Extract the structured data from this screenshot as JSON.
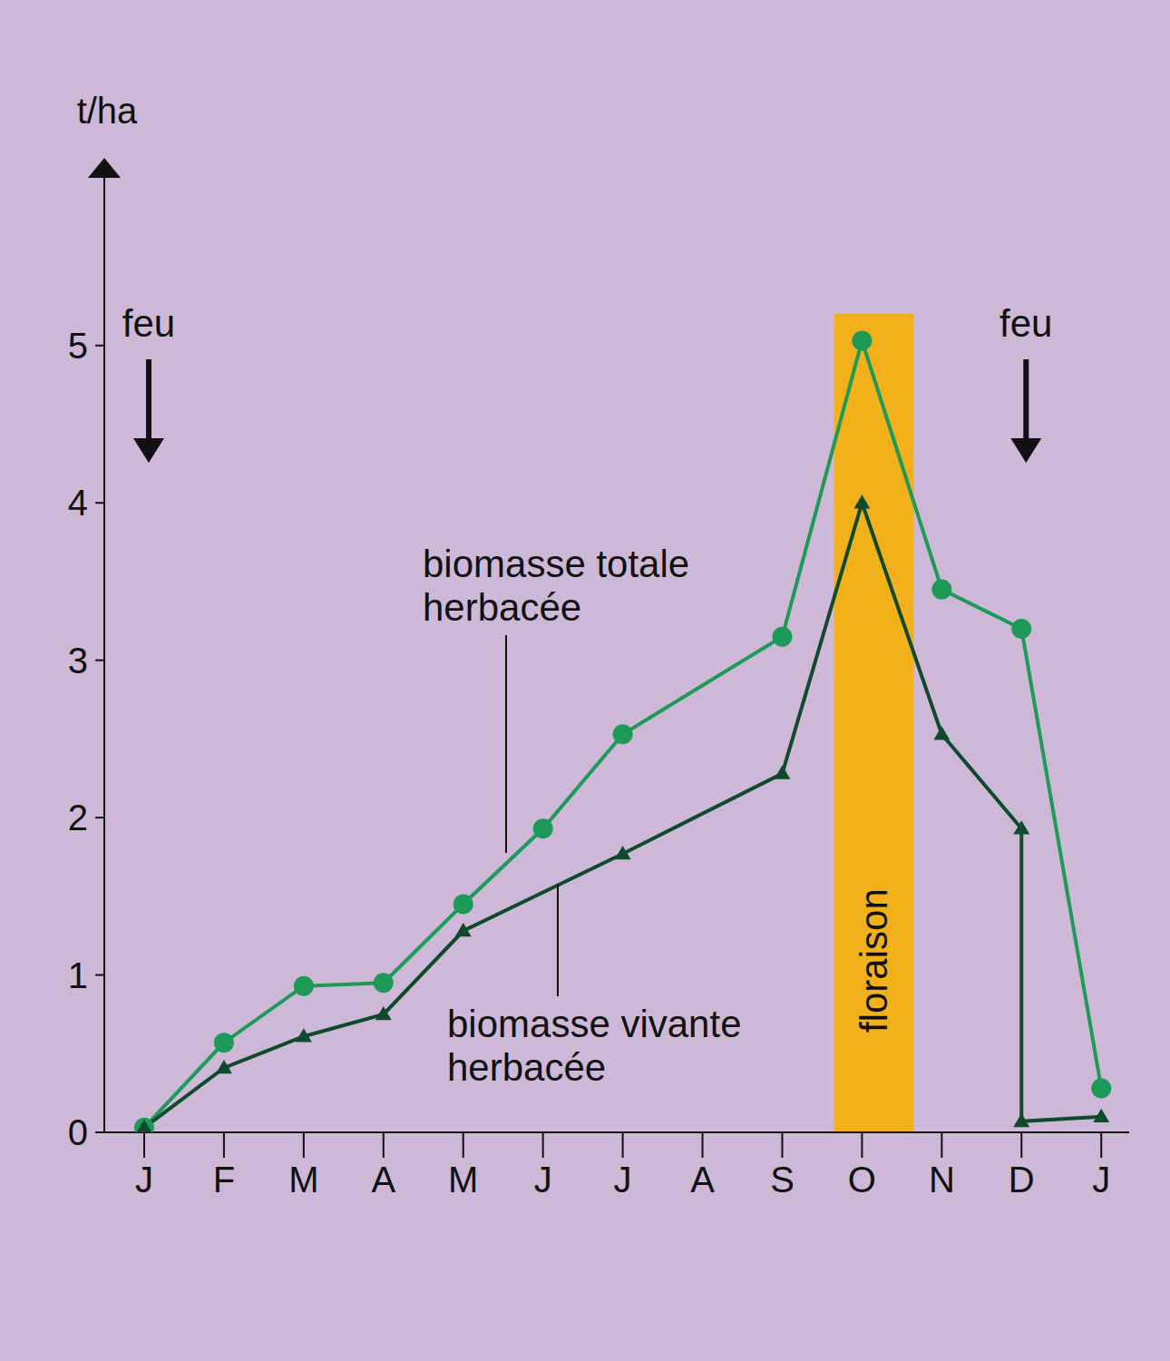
{
  "chart_data": {
    "type": "line",
    "y_label": "t/ha",
    "xlim": [
      -0.5,
      12.35
    ],
    "xticks": [
      {
        "value": 0,
        "label": "J"
      },
      {
        "value": 1,
        "label": "F"
      },
      {
        "value": 2,
        "label": "M"
      },
      {
        "value": 3,
        "label": "A"
      },
      {
        "value": 4,
        "label": "M"
      },
      {
        "value": 5,
        "label": "J"
      },
      {
        "value": 6,
        "label": "J"
      },
      {
        "value": 7,
        "label": "A"
      },
      {
        "value": 8,
        "label": "S"
      },
      {
        "value": 9,
        "label": "O"
      },
      {
        "value": 10,
        "label": "N"
      },
      {
        "value": 11,
        "label": "D"
      },
      {
        "value": 12,
        "label": "J"
      }
    ],
    "ylim": [
      0,
      6.1
    ],
    "yticks": [
      0,
      1,
      2,
      3,
      4,
      5
    ],
    "grid": false,
    "series": [
      {
        "name": "biomasse totale herbacée",
        "color": "#1e9a58",
        "marker": "circle",
        "x": [
          0,
          1,
          2,
          3,
          4,
          5,
          6,
          8,
          9,
          10,
          11,
          12
        ],
        "values": [
          0.03,
          0.57,
          0.93,
          0.95,
          1.45,
          1.93,
          2.53,
          3.15,
          5.03,
          3.45,
          3.2,
          0.28
        ]
      },
      {
        "name": "biomasse vivante herbacée",
        "color": "#0f4a2c",
        "marker": "triangle",
        "x": [
          0,
          1,
          2,
          3,
          4,
          6,
          8,
          9,
          10,
          11,
          11,
          12
        ],
        "values": [
          0.03,
          0.41,
          0.61,
          0.75,
          1.28,
          1.77,
          2.28,
          4.0,
          2.53,
          1.93,
          0.07,
          0.1
        ]
      }
    ],
    "annotations": [
      {
        "text": "feu",
        "x": 0
      },
      {
        "text": "feu",
        "x": 11
      }
    ],
    "bands": [
      {
        "label": "floraison",
        "x1": 8.65,
        "x2": 9.65,
        "y1": 0,
        "y2": 5.2,
        "color": "#f2b11a"
      }
    ]
  }
}
